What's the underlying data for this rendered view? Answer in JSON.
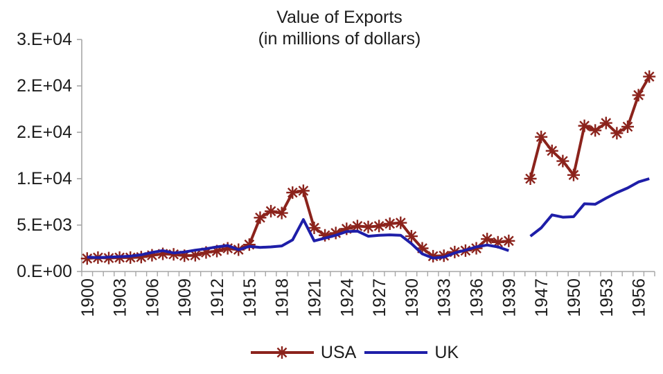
{
  "title": {
    "line1": "Value of Exports",
    "line2": "(in millions of dollars)"
  },
  "legend": {
    "usa_label": "USA",
    "uk_label": "UK"
  },
  "colors": {
    "usa": "#8B231C",
    "uk": "#1E1EA8",
    "axis": "#a6a6a6",
    "text": "#1c1c1c"
  },
  "chart_data": {
    "type": "line",
    "title": "Value of Exports (in millions of dollars)",
    "xlabel": "",
    "ylabel": "",
    "ylim": [
      0,
      25000
    ],
    "grid": false,
    "legend_position": "bottom-center",
    "ytick_values": [
      0,
      5000,
      10000,
      15000,
      20000,
      25000
    ],
    "ytick_labels": [
      "0.E+00",
      "5.E+03",
      "1.E+04",
      "2.E+04",
      "2.E+04",
      "3.E+04"
    ],
    "xtick_label_years": [
      1900,
      1903,
      1906,
      1909,
      1912,
      1915,
      1918,
      1921,
      1924,
      1927,
      1930,
      1933,
      1936,
      1939,
      1947,
      1950,
      1953,
      1956
    ],
    "x_axis_note": "categorical years 1900-1939 and 1946-1957 with one blank gap category between 1939 and 1946 (WWII years omitted)",
    "series": [
      {
        "name": "USA",
        "color": "#8B231C",
        "marker": "star",
        "segments": [
          {
            "years": [
              1900,
              1901,
              1902,
              1903,
              1904,
              1905,
              1906,
              1907,
              1908,
              1909,
              1910,
              1911,
              1912,
              1913,
              1914,
              1915,
              1916,
              1917,
              1918,
              1919,
              1920,
              1921,
              1922,
              1923,
              1924,
              1925,
              1926,
              1927,
              1928,
              1929,
              1930,
              1931,
              1932,
              1933,
              1934,
              1935,
              1936,
              1937,
              1938,
              1939
            ],
            "values": [
              1400,
              1500,
              1450,
              1500,
              1500,
              1550,
              1750,
              1900,
              1850,
              1700,
              1750,
              2050,
              2200,
              2500,
              2350,
              2900,
              5800,
              6500,
              6300,
              8500,
              8700,
              4700,
              3900,
              4150,
              4600,
              4900,
              4800,
              4900,
              5150,
              5250,
              3800,
              2500,
              1650,
              1700,
              2100,
              2250,
              2500,
              3500,
              3150,
              3300
            ]
          },
          {
            "years": [
              1946,
              1947,
              1948,
              1949,
              1950,
              1951,
              1952,
              1953,
              1954,
              1955,
              1956,
              1957
            ],
            "values": [
              10000,
              14500,
              13000,
              11900,
              10400,
              15700,
              15200,
              16000,
              14900,
              15600,
              19000,
              21000
            ]
          }
        ]
      },
      {
        "name": "UK",
        "color": "#1E1EA8",
        "marker": "none",
        "segments": [
          {
            "years": [
              1900,
              1901,
              1902,
              1903,
              1904,
              1905,
              1906,
              1907,
              1908,
              1909,
              1910,
              1911,
              1912,
              1913,
              1914,
              1915,
              1916,
              1917,
              1918,
              1919,
              1920,
              1921,
              1922,
              1923,
              1924,
              1925,
              1926,
              1927,
              1928,
              1929,
              1930,
              1931,
              1932,
              1933,
              1934,
              1935,
              1936,
              1937,
              1938,
              1939
            ],
            "values": [
              1550,
              1500,
              1550,
              1600,
              1650,
              1800,
              2050,
              2250,
              2000,
              2100,
              2300,
              2450,
              2650,
              2800,
              2350,
              2700,
              2600,
              2650,
              2750,
              3400,
              5600,
              3300,
              3600,
              3900,
              4300,
              4350,
              3800,
              3900,
              3950,
              3900,
              3000,
              1900,
              1450,
              1550,
              2000,
              2300,
              2650,
              2850,
              2650,
              2250
            ]
          },
          {
            "years": [
              1946,
              1947,
              1948,
              1949,
              1950,
              1951,
              1952,
              1953,
              1954,
              1955,
              1956,
              1957
            ],
            "values": [
              3800,
              4700,
              6100,
              5850,
              5900,
              7300,
              7250,
              7900,
              8500,
              9000,
              9650,
              10000
            ]
          }
        ]
      }
    ]
  }
}
